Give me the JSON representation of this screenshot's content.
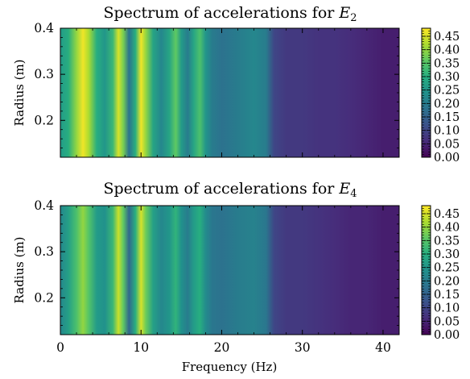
{
  "chart_data": [
    {
      "type": "heatmap",
      "title": "Spectrum of accelerations for ",
      "title_math": "E",
      "title_subscript": "2",
      "xlabel": "",
      "ylabel": "Radius (m)",
      "xlim": [
        0,
        42
      ],
      "ylim": [
        0.12,
        0.4
      ],
      "x_ticks": [
        0,
        10,
        20,
        30,
        40
      ],
      "x_ticklabels": [
        "",
        "",
        "",
        "",
        ""
      ],
      "y_ticks": [
        0.2,
        0.3,
        0.4
      ],
      "y_ticklabels": [
        "0.2",
        "0.3",
        "0.4"
      ],
      "colormap": "viridis",
      "colorbar": {
        "range": [
          0,
          0.48
        ],
        "ticks": [
          0.0,
          0.05,
          0.1,
          0.15,
          0.2,
          0.25,
          0.3,
          0.35,
          0.4,
          0.45
        ],
        "ticklabels": [
          "0.00",
          "0.05",
          "0.10",
          "0.15",
          "0.20",
          "0.25",
          "0.30",
          "0.35",
          "0.40",
          "0.45"
        ]
      },
      "frequency_profile": {
        "x": [
          0,
          1,
          2,
          2.8,
          3.5,
          4.5,
          5.5,
          6.5,
          7.2,
          7.8,
          8.5,
          9.3,
          10,
          10.6,
          11.5,
          12.5,
          13.5,
          14.3,
          15,
          15.8,
          16.5,
          17.3,
          18,
          18.8,
          20,
          22,
          24,
          25.5,
          26.5,
          28,
          30,
          32,
          34,
          36,
          38,
          40,
          42
        ],
        "value": [
          0.26,
          0.3,
          0.4,
          0.47,
          0.42,
          0.3,
          0.25,
          0.32,
          0.45,
          0.38,
          0.18,
          0.3,
          0.47,
          0.4,
          0.28,
          0.22,
          0.28,
          0.36,
          0.26,
          0.2,
          0.28,
          0.34,
          0.25,
          0.2,
          0.18,
          0.2,
          0.22,
          0.2,
          0.1,
          0.08,
          0.08,
          0.07,
          0.07,
          0.06,
          0.05,
          0.04,
          0.04
        ]
      }
    },
    {
      "type": "heatmap",
      "title": "Spectrum of accelerations for ",
      "title_math": "E",
      "title_subscript": "4",
      "xlabel": "Frequency (Hz)",
      "ylabel": "Radius (m)",
      "xlim": [
        0,
        42
      ],
      "ylim": [
        0.12,
        0.4
      ],
      "x_ticks": [
        0,
        10,
        20,
        30,
        40
      ],
      "x_ticklabels": [
        "0",
        "10",
        "20",
        "30",
        "40"
      ],
      "y_ticks": [
        0.2,
        0.3,
        0.4
      ],
      "y_ticklabels": [
        "0.2",
        "0.3",
        "0.4"
      ],
      "colormap": "viridis",
      "colorbar": {
        "range": [
          0,
          0.48
        ],
        "ticks": [
          0.0,
          0.05,
          0.1,
          0.15,
          0.2,
          0.25,
          0.3,
          0.35,
          0.4,
          0.45
        ],
        "ticklabels": [
          "0.00",
          "0.05",
          "0.10",
          "0.15",
          "0.20",
          "0.25",
          "0.30",
          "0.35",
          "0.40",
          "0.45"
        ]
      },
      "frequency_profile": {
        "x": [
          0,
          1,
          2,
          2.8,
          3.5,
          4.5,
          5.5,
          6.5,
          7.2,
          7.8,
          8.5,
          9.3,
          10,
          10.6,
          11.5,
          12.5,
          13.5,
          14.3,
          15,
          15.8,
          16.5,
          17.3,
          18,
          18.8,
          20,
          22,
          24,
          25.5,
          26.5,
          28,
          30,
          32,
          34,
          36,
          38,
          40,
          42
        ],
        "value": [
          0.22,
          0.27,
          0.34,
          0.4,
          0.35,
          0.26,
          0.24,
          0.32,
          0.44,
          0.36,
          0.16,
          0.3,
          0.45,
          0.37,
          0.27,
          0.22,
          0.25,
          0.31,
          0.24,
          0.2,
          0.26,
          0.3,
          0.23,
          0.19,
          0.18,
          0.2,
          0.21,
          0.19,
          0.1,
          0.08,
          0.08,
          0.07,
          0.06,
          0.05,
          0.05,
          0.04,
          0.04
        ]
      }
    }
  ]
}
